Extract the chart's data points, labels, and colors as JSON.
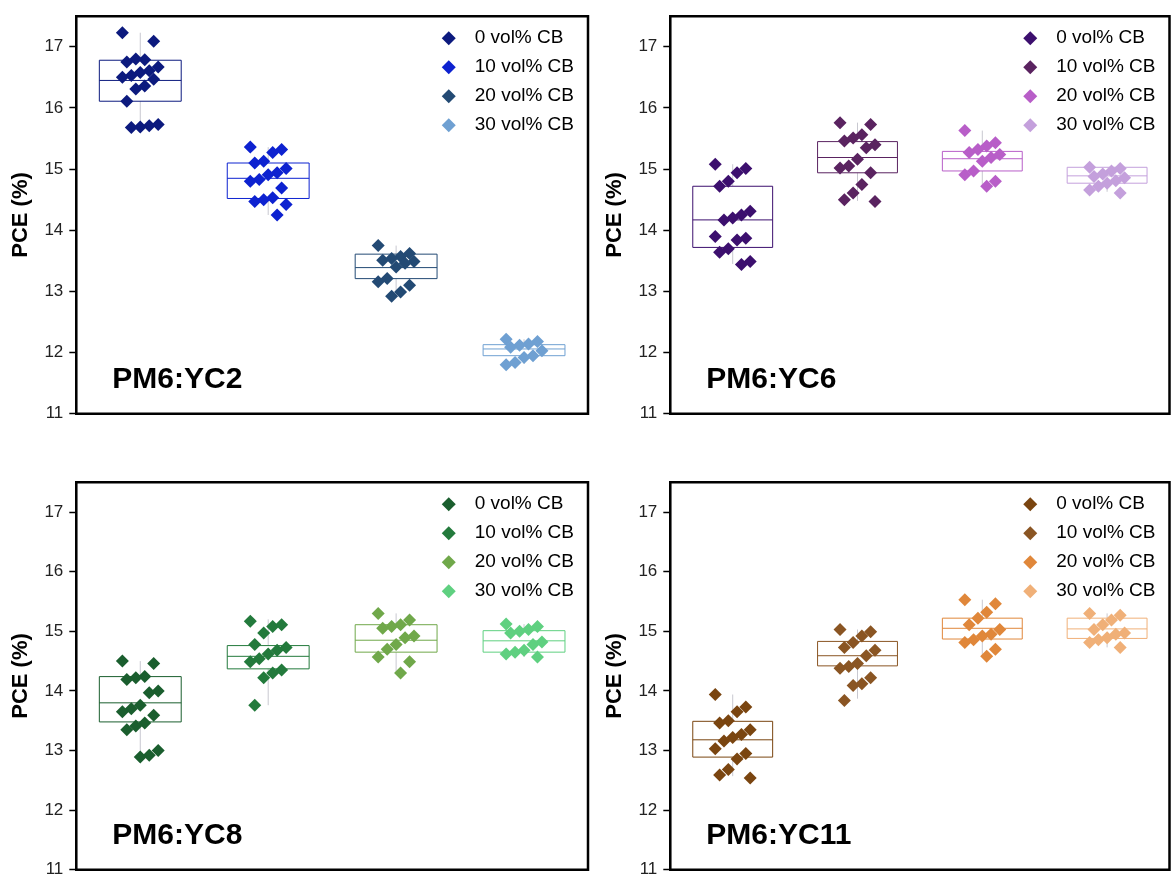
{
  "chart_data": [
    {
      "type": "box",
      "ylabel": "PCE (%)",
      "annotations": [
        "PM6:YC2"
      ],
      "categories": [
        null,
        null,
        null,
        null
      ],
      "ylim": [
        11,
        17.5
      ],
      "yticks": [
        11,
        12,
        13,
        14,
        15,
        16,
        17
      ],
      "tick_labels": "y",
      "legend": "top right",
      "marker": "diamond",
      "series": [
        {
          "name": "0 vol% CB",
          "color": "#0c1a7e",
          "boxes": [
            {
              "low": 15.7,
              "q1": 16.11,
              "median": 16.45,
              "q3": 16.78,
              "high": 17.23,
              "outliers": [
                17.23,
                17.09,
                16.79,
                16.8,
                16.75,
                16.67,
                16.61,
                16.58,
                16.53,
                16.5,
                16.47,
                16.36,
                16.31,
                16.11,
                15.73,
                15.71,
                15.69,
                15.68
              ]
            },
            null,
            null,
            null
          ]
        },
        {
          "name": "10 vol% CB",
          "color": "#0d22d0",
          "boxes": [
            null,
            {
              "low": 14.25,
              "q1": 14.52,
              "median": 14.85,
              "q3": 15.1,
              "high": 15.36,
              "outliers": [
                15.36,
                15.32,
                15.27,
                15.13,
                15.1,
                15.01,
                14.94,
                14.91,
                14.83,
                14.8,
                14.69,
                14.53,
                14.5,
                14.47,
                14.42,
                14.25
              ]
            },
            null,
            null
          ]
        },
        {
          "name": "20 vol% CB",
          "color": "#234a74",
          "boxes": [
            null,
            null,
            {
              "low": 12.92,
              "q1": 13.21,
              "median": 13.39,
              "q3": 13.61,
              "high": 13.75,
              "outliers": [
                13.75,
                13.62,
                13.57,
                13.54,
                13.51,
                13.49,
                13.46,
                13.4,
                13.21,
                13.16,
                13.1,
                12.99,
                12.92
              ]
            },
            null
          ]
        },
        {
          "name": "30 vol% CB",
          "color": "#6fa0d2",
          "boxes": [
            null,
            null,
            null,
            {
              "low": 11.82,
              "q1": 11.95,
              "median": 12.06,
              "q3": 12.13,
              "high": 12.22,
              "outliers": [
                12.22,
                12.18,
                12.14,
                12.12,
                12.09,
                12.03,
                11.95,
                11.92,
                11.84,
                11.8
              ]
            }
          ]
        }
      ]
    },
    {
      "type": "box",
      "ylabel": "PCE (%)",
      "annotations": [
        "PM6:YC6"
      ],
      "categories": [
        null,
        null,
        null,
        null
      ],
      "ylim": [
        11,
        17.5
      ],
      "yticks": [
        11,
        12,
        13,
        14,
        15,
        16,
        17
      ],
      "tick_labels": "y",
      "legend": "top right",
      "marker": "diamond",
      "series": [
        {
          "name": "0 vol% CB",
          "color": "#3c0f6e",
          "boxes": [
            {
              "low": 13.45,
              "q1": 13.72,
              "median": 14.17,
              "q3": 14.72,
              "high": 15.08,
              "outliers": [
                15.08,
                15.01,
                14.94,
                14.8,
                14.72,
                14.31,
                14.25,
                14.2,
                14.17,
                13.9,
                13.87,
                13.84,
                13.7,
                13.64,
                13.49,
                13.44
              ]
            },
            null,
            null,
            null
          ]
        },
        {
          "name": "10 vol% CB",
          "color": "#5a2360",
          "boxes": [
            null,
            {
              "low": 14.48,
              "q1": 14.94,
              "median": 15.19,
              "q3": 15.45,
              "high": 15.76,
              "outliers": [
                15.76,
                15.73,
                15.56,
                15.51,
                15.46,
                15.4,
                15.35,
                15.16,
                15.05,
                15.02,
                14.94,
                14.75,
                14.61,
                14.5,
                14.47
              ]
            },
            null,
            null
          ]
        },
        {
          "name": "20 vol% CB",
          "color": "#b85ec8",
          "boxes": [
            null,
            null,
            {
              "low": 14.73,
              "q1": 14.97,
              "median": 15.17,
              "q3": 15.29,
              "high": 15.63,
              "outliers": [
                15.63,
                15.43,
                15.38,
                15.32,
                15.27,
                15.24,
                15.19,
                15.13,
                14.97,
                14.91,
                14.8,
                14.72
              ]
            },
            null
          ]
        },
        {
          "name": "30 vol% CB",
          "color": "#c4a0dc",
          "boxes": [
            null,
            null,
            null,
            {
              "low": 14.63,
              "q1": 14.77,
              "median": 14.89,
              "q3": 15.03,
              "high": 15.03,
              "outliers": [
                15.03,
                15.01,
                14.97,
                14.92,
                14.88,
                14.86,
                14.81,
                14.77,
                14.72,
                14.66,
                14.61
              ]
            }
          ]
        }
      ]
    },
    {
      "type": "box",
      "ylabel": "PCE (%)",
      "annotations": [
        "PM6:YC8"
      ],
      "categories": [
        null,
        null,
        null,
        null
      ],
      "ylim": [
        11,
        17.5
      ],
      "yticks": [
        11,
        12,
        13,
        14,
        15,
        16,
        17
      ],
      "tick_labels": "y",
      "legend": "top right",
      "marker": "diamond",
      "series": [
        {
          "name": "0 vol% CB",
          "color": "#1a5e2e",
          "boxes": [
            {
              "low": 12.92,
              "q1": 13.48,
              "median": 13.8,
              "q3": 14.24,
              "high": 14.5,
              "outliers": [
                14.5,
                14.46,
                14.24,
                14.22,
                14.19,
                14.0,
                13.97,
                13.76,
                13.7,
                13.65,
                13.59,
                13.46,
                13.41,
                13.35,
                13.0,
                12.92,
                12.89
              ]
            },
            null,
            null,
            null
          ]
        },
        {
          "name": "10 vol% CB",
          "color": "#237a3c",
          "boxes": [
            null,
            {
              "low": 13.76,
              "q1": 14.37,
              "median": 14.58,
              "q3": 14.76,
              "high": 15.2,
              "outliers": [
                15.17,
                15.11,
                15.08,
                14.97,
                14.78,
                14.73,
                14.68,
                14.62,
                14.54,
                14.49,
                14.35,
                14.3,
                14.22,
                13.76
              ]
            },
            null,
            null
          ]
        },
        {
          "name": "20 vol% CB",
          "color": "#70a84a",
          "boxes": [
            null,
            null,
            {
              "low": 14.3,
              "q1": 14.65,
              "median": 14.85,
              "q3": 15.11,
              "high": 15.3,
              "outliers": [
                15.3,
                15.19,
                15.11,
                15.08,
                15.05,
                14.92,
                14.89,
                14.78,
                14.7,
                14.57,
                14.49,
                14.3
              ]
            },
            null
          ]
        },
        {
          "name": "30 vol% CB",
          "color": "#5fd080",
          "boxes": [
            null,
            null,
            null,
            {
              "low": 14.57,
              "q1": 14.65,
              "median": 14.84,
              "q3": 15.01,
              "high": 15.12,
              "outliers": [
                15.12,
                15.08,
                15.03,
                15.0,
                14.97,
                14.82,
                14.78,
                14.68,
                14.65,
                14.62,
                14.57
              ]
            }
          ]
        }
      ]
    },
    {
      "type": "box",
      "ylabel": "PCE (%)",
      "annotations": [
        "PM6:YC11"
      ],
      "categories": [
        null,
        null,
        null,
        null
      ],
      "ylim": [
        11,
        17.5
      ],
      "yticks": [
        11,
        12,
        13,
        14,
        15,
        16,
        17
      ],
      "tick_labels": "y",
      "legend": "top right",
      "marker": "diamond",
      "series": [
        {
          "name": "0 vol% CB",
          "color": "#7a4510",
          "boxes": [
            {
              "low": 12.57,
              "q1": 12.89,
              "median": 13.18,
              "q3": 13.49,
              "high": 13.94,
              "outliers": [
                13.94,
                13.73,
                13.65,
                13.5,
                13.46,
                13.35,
                13.27,
                13.22,
                13.16,
                13.03,
                12.95,
                12.86,
                12.68,
                12.59,
                12.54
              ]
            },
            null,
            null,
            null
          ]
        },
        {
          "name": "10 vol% CB",
          "color": "#8a5523",
          "boxes": [
            null,
            {
              "low": 13.87,
              "q1": 14.42,
              "median": 14.59,
              "q3": 14.83,
              "high": 15.03,
              "outliers": [
                15.03,
                14.99,
                14.92,
                14.81,
                14.73,
                14.68,
                14.59,
                14.46,
                14.41,
                14.38,
                14.22,
                14.12,
                14.09,
                13.84
              ]
            },
            null,
            null
          ]
        },
        {
          "name": "20 vol% CB",
          "color": "#e0873a",
          "boxes": [
            null,
            null,
            {
              "low": 14.58,
              "q1": 14.87,
              "median": 15.05,
              "q3": 15.22,
              "high": 15.53,
              "outliers": [
                15.53,
                15.46,
                15.32,
                15.22,
                15.11,
                15.03,
                14.95,
                14.92,
                14.86,
                14.81,
                14.7,
                14.58
              ]
            },
            null
          ]
        },
        {
          "name": "30 vol% CB",
          "color": "#f0b078",
          "boxes": [
            null,
            null,
            null,
            {
              "low": 14.73,
              "q1": 14.88,
              "median": 15.04,
              "q3": 15.22,
              "high": 15.3,
              "outliers": [
                15.3,
                15.27,
                15.19,
                15.11,
                15.03,
                14.97,
                14.95,
                14.89,
                14.86,
                14.81,
                14.73
              ]
            }
          ]
        }
      ]
    }
  ]
}
